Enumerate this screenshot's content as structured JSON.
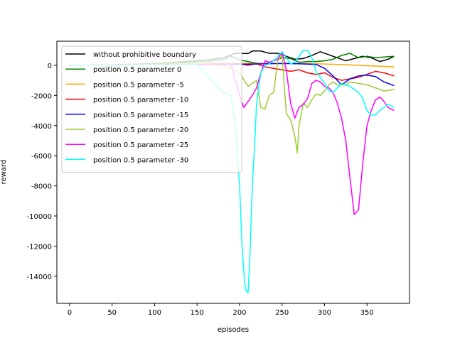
{
  "chart_data": {
    "type": "line",
    "title": "",
    "xlabel": "episodes",
    "ylabel": "reward",
    "xlim": [
      -15,
      400
    ],
    "ylim": [
      -15800,
      1600
    ],
    "xticks": [
      0,
      50,
      100,
      150,
      200,
      250,
      300,
      350
    ],
    "yticks": [
      -14000,
      -12000,
      -10000,
      -8000,
      -6000,
      -4000,
      -2000,
      0
    ],
    "grid": false,
    "legend_position": "upper-left",
    "series": [
      {
        "name": "without prohibitive boundary",
        "color": "#000000",
        "x": [
          0,
          20,
          40,
          60,
          80,
          100,
          120,
          140,
          160,
          180,
          195,
          210,
          215,
          225,
          235,
          245,
          255,
          265,
          275,
          285,
          295,
          305,
          315,
          325,
          335,
          345,
          355,
          365,
          375,
          382
        ],
        "y": [
          0,
          10,
          20,
          50,
          80,
          120,
          180,
          260,
          350,
          480,
          800,
          780,
          950,
          950,
          800,
          800,
          600,
          400,
          450,
          650,
          900,
          700,
          500,
          300,
          450,
          600,
          500,
          250,
          400,
          600
        ]
      },
      {
        "name": "position 0.5 parameter 0",
        "color": "#008000",
        "x": [
          0,
          20,
          40,
          60,
          80,
          100,
          120,
          140,
          160,
          180,
          190,
          200,
          210,
          220,
          230,
          240,
          250,
          260,
          270,
          280,
          290,
          300,
          310,
          320,
          330,
          340,
          350,
          360,
          370,
          382
        ],
        "y": [
          0,
          10,
          20,
          40,
          80,
          120,
          150,
          200,
          250,
          350,
          600,
          350,
          250,
          150,
          100,
          300,
          500,
          450,
          200,
          250,
          250,
          300,
          400,
          650,
          800,
          500,
          600,
          500,
          550,
          600
        ]
      },
      {
        "name": "position 0.5 parameter -5",
        "color": "#ffa500",
        "x": [
          0,
          40,
          80,
          120,
          160,
          200,
          240,
          280,
          320,
          360,
          382
        ],
        "y": [
          0,
          20,
          50,
          80,
          100,
          120,
          140,
          120,
          50,
          -50,
          -100
        ]
      },
      {
        "name": "position 0.5 parameter -10",
        "color": "#ff0000",
        "x": [
          0,
          40,
          80,
          120,
          160,
          200,
          210,
          220,
          230,
          240,
          250,
          260,
          270,
          280,
          290,
          300,
          310,
          320,
          330,
          340,
          350,
          360,
          370,
          382
        ],
        "y": [
          0,
          20,
          40,
          60,
          80,
          100,
          0,
          100,
          -100,
          -200,
          -300,
          -400,
          -300,
          -500,
          -600,
          -500,
          -800,
          -1000,
          -900,
          -800,
          -600,
          -400,
          -500,
          -700
        ]
      },
      {
        "name": "position 0.5 parameter -15",
        "color": "#0000ff",
        "x": [
          0,
          40,
          80,
          120,
          160,
          190,
          210,
          230,
          250,
          270,
          290,
          300,
          310,
          320,
          330,
          340,
          350,
          360,
          370,
          382
        ],
        "y": [
          0,
          10,
          30,
          40,
          50,
          60,
          80,
          100,
          120,
          100,
          60,
          -200,
          -700,
          -1300,
          -900,
          -700,
          -650,
          -750,
          -1100,
          -1350
        ]
      },
      {
        "name": "position 0.5 parameter -20",
        "color": "#9acd32",
        "x": [
          0,
          50,
          100,
          150,
          180,
          200,
          210,
          215,
          220,
          225,
          230,
          235,
          240,
          245,
          250,
          255,
          260,
          265,
          268,
          270,
          275,
          280,
          285,
          290,
          295,
          300,
          305,
          310,
          315,
          320,
          325,
          330,
          340,
          350,
          360,
          370,
          382
        ],
        "y": [
          0,
          10,
          50,
          100,
          0,
          -500,
          -1400,
          -1200,
          -1000,
          -2800,
          -2900,
          -2000,
          -1800,
          300,
          700,
          -3200,
          -3600,
          -4700,
          -5800,
          -4000,
          -2500,
          -2800,
          -2300,
          -1900,
          -2000,
          -1700,
          -1300,
          -1100,
          -1300,
          -1300,
          -1300,
          -1100,
          -1200,
          -1300,
          -1500,
          -1700,
          -1600
        ]
      },
      {
        "name": "position 0.5 parameter -25",
        "color": "#ff00ff",
        "x": [
          0,
          50,
          100,
          150,
          190,
          200,
          205,
          210,
          215,
          220,
          225,
          230,
          235,
          240,
          245,
          250,
          255,
          260,
          265,
          270,
          275,
          280,
          285,
          290,
          295,
          300,
          305,
          310,
          315,
          320,
          325,
          330,
          335,
          340,
          345,
          350,
          355,
          360,
          365,
          370,
          375,
          382
        ],
        "y": [
          0,
          20,
          30,
          50,
          80,
          -2000,
          -2800,
          -2400,
          -2000,
          -1500,
          -500,
          300,
          200,
          300,
          400,
          900,
          -300,
          -2500,
          -3500,
          -2800,
          -2600,
          -2200,
          -1200,
          -1000,
          -1100,
          -1400,
          -1500,
          -1800,
          -2500,
          -3500,
          -5000,
          -7500,
          -9900,
          -9600,
          -6500,
          -4000,
          -3000,
          -2300,
          -2100,
          -2400,
          -2800,
          -3000
        ]
      },
      {
        "name": "position 0.5 parameter -30",
        "color": "#00ffff",
        "x": [
          0,
          50,
          100,
          150,
          180,
          190,
          195,
          200,
          203,
          206,
          208,
          210,
          212,
          215,
          218,
          220,
          225,
          230,
          235,
          240,
          245,
          250,
          255,
          260,
          265,
          270,
          275,
          280,
          285,
          290,
          295,
          300,
          305,
          310,
          315,
          320,
          325,
          330,
          335,
          340,
          345,
          350,
          355,
          360,
          365,
          370,
          375,
          382
        ],
        "y": [
          0,
          20,
          40,
          60,
          -1800,
          -2000,
          -4000,
          -8000,
          -12000,
          -14500,
          -15000,
          -15100,
          -13000,
          -8000,
          -5000,
          -2500,
          -500,
          0,
          100,
          300,
          600,
          900,
          500,
          100,
          200,
          600,
          1000,
          1000,
          500,
          -400,
          -800,
          -1200,
          -1700,
          -1800,
          -1500,
          -1200,
          -1300,
          -1400,
          -1600,
          -1800,
          -2200,
          -3000,
          -3300,
          -3300,
          -3000,
          -2800,
          -2600,
          -2800
        ]
      }
    ]
  }
}
